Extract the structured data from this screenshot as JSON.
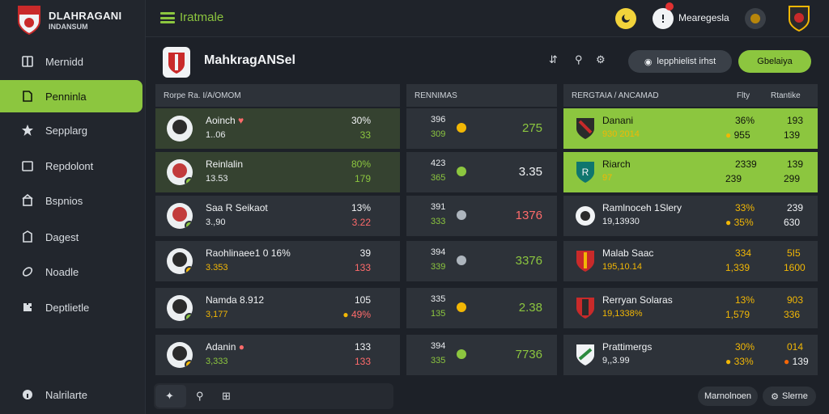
{
  "brand": {
    "title": "DLAHRAGANI",
    "subtitle": "INDANSUM"
  },
  "sidebar": {
    "items": [
      {
        "label": "Mernidd",
        "icon": "book-icon"
      },
      {
        "label": "Penninla",
        "icon": "document-icon",
        "active": true
      },
      {
        "label": "Sepplarg",
        "icon": "star-icon"
      },
      {
        "label": "Repdolont",
        "icon": "folder-icon"
      },
      {
        "label": "Bspnios",
        "icon": "building-icon"
      },
      {
        "label": "Dagest",
        "icon": "clipboard-icon"
      },
      {
        "label": "Noadle",
        "icon": "whistle-icon"
      },
      {
        "label": "Deptlietle",
        "icon": "puzzle-icon"
      }
    ],
    "footer_label": "Nalrilarte"
  },
  "topbar": {
    "title": "Iratmale",
    "user": "Mearegesla"
  },
  "page": {
    "title": "MahkragANSel",
    "btn_dark": "lepphielist irhst",
    "btn_green": "Gbelaiya"
  },
  "players_panel": {
    "header": "Rorpe Ra. I/A/OMOM",
    "rows": [
      {
        "name": "Aoinch",
        "sub": "1..06",
        "v1": "30%",
        "v2": "33",
        "v2_color": "green"
      },
      {
        "name": "Reinlalin",
        "sub": "13.53",
        "v1": "80%",
        "v2": "179",
        "v2_color": "green"
      },
      {
        "name": "Saa R Seikaot",
        "sub": "3.,90",
        "v1": "13%",
        "v2": "3.22",
        "v2_color": "red"
      },
      {
        "name": "Raohlinaee1 0 16%",
        "sub": "3.353",
        "v1": "39",
        "v2": "133",
        "v2_color": "red"
      },
      {
        "name": "Namda 8.912",
        "sub": "3,177",
        "v1": "105",
        "v2": "49%",
        "v2_color": "red"
      },
      {
        "name": "Adanin",
        "sub": "3,333",
        "v1": "133",
        "v2": "133",
        "v2_color": "red"
      }
    ]
  },
  "middle_panel": {
    "header": "RENNIMAS",
    "rows": [
      {
        "v1": "396",
        "v2": "309",
        "big": "275",
        "big_color": "green",
        "dot": "gold"
      },
      {
        "v1": "423",
        "v2": "365",
        "big": "3.35",
        "big_color": "green",
        "dot": "green"
      },
      {
        "v1": "391",
        "v2": "333",
        "big": "1376",
        "big_color": "red",
        "dot": "grey"
      },
      {
        "v1": "394",
        "v2": "339",
        "big": "3376",
        "big_color": "green",
        "dot": "grey"
      },
      {
        "v1": "335",
        "v2": "135",
        "big": "2.38",
        "big_color": "green",
        "dot": "gold"
      },
      {
        "v1": "394",
        "v2": "335",
        "big": "7736",
        "big_color": "green",
        "dot": "green"
      }
    ]
  },
  "teams_panel": {
    "header": "RERGTAIA / ANCAMAD",
    "col_a": "Flty",
    "col_b": "Rtantike",
    "rows": [
      {
        "name": "Danani",
        "sub": "930 2014",
        "a1": "36%",
        "a2": "955",
        "b1": "193",
        "b2": "139",
        "style": "lime"
      },
      {
        "name": "Riarch",
        "sub": "97",
        "a1": "2339",
        "a2": "239",
        "b1": "139",
        "b2": "299",
        "style": "lime"
      },
      {
        "name": "Ramlnoceh 1Slery",
        "sub": "19,13930",
        "a1": "33%",
        "a2": "35%",
        "b1": "239",
        "b2": "630",
        "style": "dark"
      },
      {
        "name": "Malab Saac",
        "sub": "195,10.14",
        "a1": "334",
        "a2": "1,339",
        "b1": "5I5",
        "b2": "1600",
        "style": "dark"
      },
      {
        "name": "Rerryan Solaras",
        "sub": "19,1338%",
        "a1": "13%",
        "a2": "1,579",
        "b1": "903",
        "b2": "336",
        "style": "dark"
      },
      {
        "name": "Prattimergs",
        "sub": "9,,3.99",
        "a1": "30%",
        "a2": "33%",
        "b1": "014",
        "b2": "139",
        "style": "dark"
      }
    ]
  },
  "footer": {
    "pill_left": "Marnolnoen",
    "pill_right": "Slerne"
  },
  "colors": {
    "accent": "#8cc63f",
    "bg": "#1d2128",
    "panel": "#2d3239",
    "red": "#ff6b6b",
    "gold": "#f2b705"
  }
}
